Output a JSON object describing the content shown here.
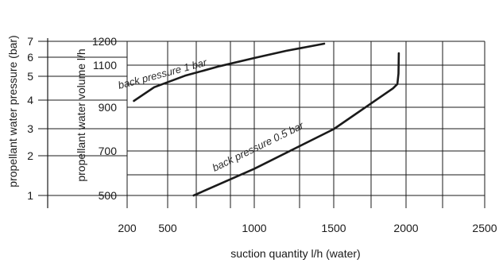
{
  "chart_data": {
    "type": "line",
    "title": "",
    "xlabel": "suction quantity l/h (water)",
    "x_ticks": [
      "200",
      "500",
      "1000",
      "1500",
      "2000",
      "2500"
    ],
    "xlim": [
      200,
      2500
    ],
    "y_axes": [
      {
        "id": "pressure",
        "label": "propellant water pressure (bar)",
        "ticks": [
          "1",
          "2",
          "3",
          "4",
          "5",
          "6",
          "7"
        ]
      },
      {
        "id": "volume",
        "label": "propellant water volume l/h",
        "ticks": [
          "500",
          "700",
          "900",
          "1100",
          "1200"
        ],
        "ylim": [
          500,
          1200
        ]
      }
    ],
    "grid": true,
    "series": [
      {
        "name": "back pressure 1 bar",
        "points": [
          [
            250,
            930
          ],
          [
            400,
            995
          ],
          [
            600,
            1050
          ],
          [
            800,
            1095
          ],
          [
            1000,
            1130
          ],
          [
            1200,
            1160
          ],
          [
            1400,
            1185
          ],
          [
            1440,
            1190
          ]
        ]
      },
      {
        "name": "back pressure 0.5 bar",
        "points": [
          [
            650,
            500
          ],
          [
            1000,
            620
          ],
          [
            1500,
            800
          ],
          [
            1910,
            990
          ],
          [
            1940,
            1010
          ],
          [
            1948,
            1060
          ],
          [
            1950,
            1150
          ]
        ]
      }
    ]
  }
}
